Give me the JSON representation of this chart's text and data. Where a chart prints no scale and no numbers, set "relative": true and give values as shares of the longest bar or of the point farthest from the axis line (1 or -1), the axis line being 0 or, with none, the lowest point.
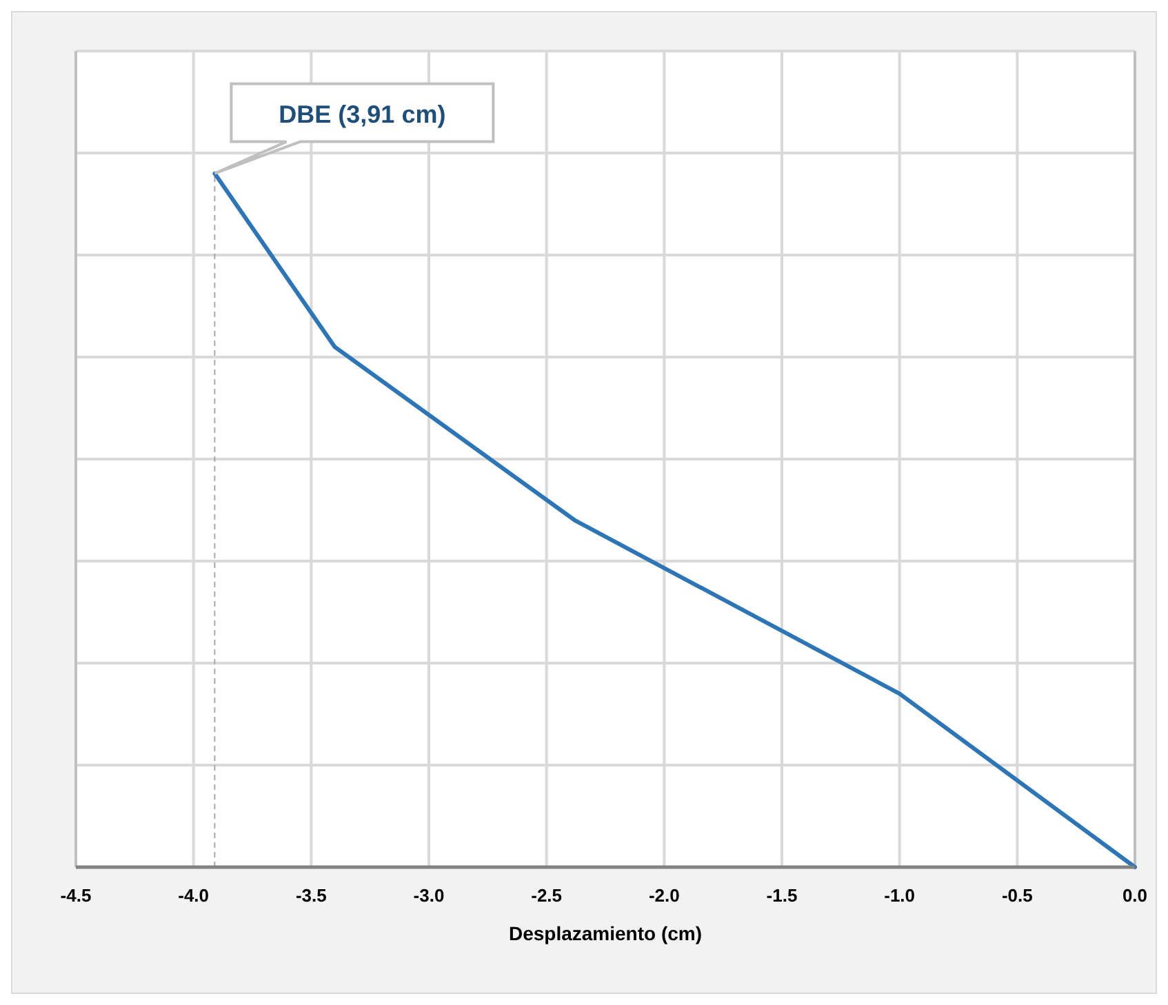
{
  "chart_data": {
    "type": "line",
    "xlabel": "Desplazamiento (cm)",
    "x": [
      0,
      -1.0,
      -2.38,
      -3.4,
      -3.91
    ],
    "series": [
      {
        "color": "#2e75b6",
        "values": [
          0,
          0.25,
          0.5,
          0.75,
          1
        ]
      }
    ],
    "relative": true,
    "xlim": [
      -4.5,
      0
    ],
    "xticks": [
      {
        "value": -4.5,
        "label": "-4.5"
      },
      {
        "value": -4,
        "label": "-4.0"
      },
      {
        "value": -3.5,
        "label": "-3.5"
      },
      {
        "value": -3,
        "label": "-3.0"
      },
      {
        "value": -2.5,
        "label": "-2.5"
      },
      {
        "value": -2,
        "label": "-2.0"
      },
      {
        "value": -1.5,
        "label": "-1.5"
      },
      {
        "value": -1,
        "label": "-1.0"
      },
      {
        "value": -0.5,
        "label": "-0.5"
      },
      {
        "value": 0,
        "label": "0.0"
      }
    ],
    "tick_labels": "x",
    "grid": true,
    "marker": "none",
    "line_style": "solid",
    "ref_lines": [
      {
        "axis": "x",
        "value": -3.91,
        "color": "#a6a6a6",
        "line_style": "dashed"
      }
    ],
    "annotations": [
      "DBE (3,91 cm)"
    ]
  }
}
